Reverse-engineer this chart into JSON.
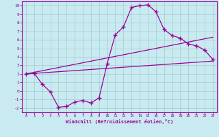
{
  "xlabel": "Windchill (Refroidissement éolien,°C)",
  "bg_color": "#c8eaf0",
  "line_color": "#990099",
  "grid_color": "#aadddd",
  "line1_x": [
    0,
    1,
    2,
    3,
    4,
    5,
    6,
    7,
    8,
    9,
    10,
    11,
    12,
    13,
    14,
    15,
    16,
    17,
    18,
    19,
    20,
    21,
    22,
    23
  ],
  "line1_y": [
    2.0,
    2.1,
    0.8,
    -0.1,
    -1.9,
    -1.8,
    -1.3,
    -1.1,
    -1.4,
    -0.8,
    3.2,
    6.6,
    7.5,
    9.8,
    10.0,
    10.1,
    9.3,
    7.2,
    6.5,
    6.2,
    5.5,
    5.3,
    4.8,
    3.7
  ],
  "line2_x": [
    0,
    23
  ],
  "line2_y": [
    2.0,
    3.5
  ],
  "line3_x": [
    0,
    23
  ],
  "line3_y": [
    2.0,
    6.3
  ],
  "xlim": [
    -0.5,
    23.5
  ],
  "ylim": [
    -2.5,
    10.5
  ],
  "xticks": [
    0,
    1,
    2,
    3,
    4,
    5,
    6,
    7,
    8,
    9,
    10,
    11,
    12,
    13,
    14,
    15,
    16,
    17,
    18,
    19,
    20,
    21,
    22,
    23
  ],
  "yticks": [
    -2,
    -1,
    0,
    1,
    2,
    3,
    4,
    5,
    6,
    7,
    8,
    9,
    10
  ]
}
